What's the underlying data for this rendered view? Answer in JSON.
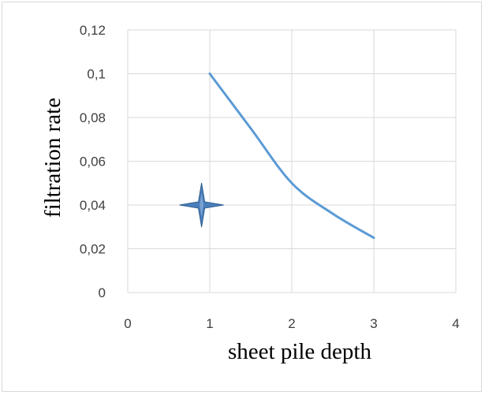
{
  "chart_data": {
    "type": "line",
    "title": "",
    "xlabel": "sheet pile depth",
    "ylabel": "filtration rate",
    "xlim": [
      0,
      4
    ],
    "ylim": [
      0,
      0.12
    ],
    "x_ticks": [
      0,
      1,
      2,
      3,
      4
    ],
    "y_ticks": [
      0,
      0.02,
      0.04,
      0.06,
      0.08,
      0.1,
      0.12
    ],
    "x_tick_labels": [
      "0",
      "1",
      "2",
      "3",
      "4"
    ],
    "y_tick_labels": [
      "0",
      "0,02",
      "0,04",
      "0,06",
      "0,08",
      "0,1",
      "0,12"
    ],
    "grid": true,
    "legend": "none",
    "series": [
      {
        "x": [
          1,
          1.5,
          2,
          2.5,
          3
        ],
        "y": [
          0.1,
          0.075,
          0.05,
          0.036,
          0.025
        ],
        "color": "#5b9bd5",
        "style": "smooth-line"
      }
    ],
    "marker_point": {
      "x": 0.9,
      "y": 0.04,
      "shape": "four-point-star",
      "color": "#4a7ebb"
    }
  }
}
